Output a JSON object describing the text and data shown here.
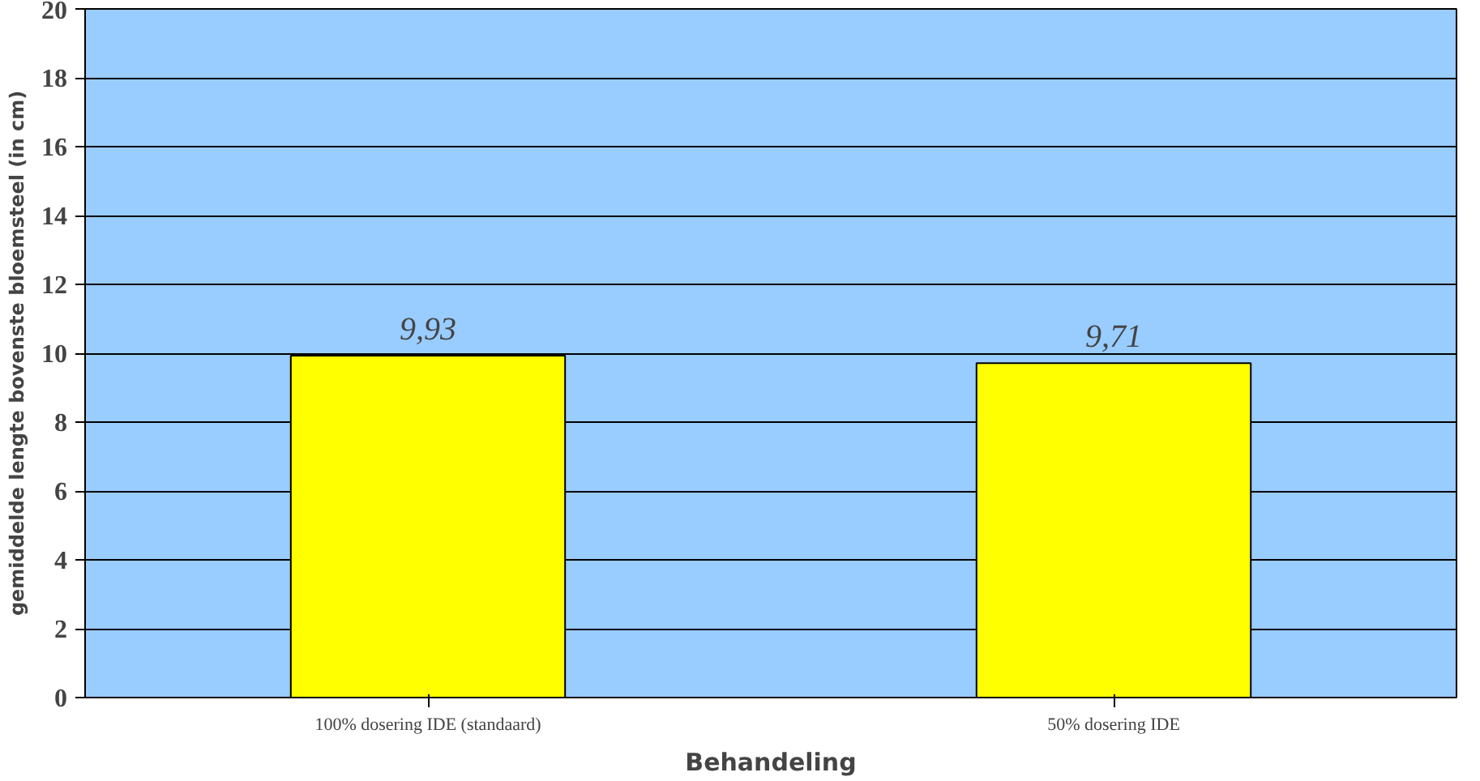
{
  "chart_data": {
    "type": "bar",
    "xlabel": "Behandeling",
    "ylabel": "gemiddelde lengte bovenste bloemsteel (in cm)",
    "categories": [
      "100% dosering IDE (standaard)",
      "50% dosering IDE"
    ],
    "values": [
      9.93,
      9.71
    ],
    "value_labels": [
      "9,93",
      "9,71"
    ],
    "color": "#ffff00",
    "ylim": [
      0,
      20
    ],
    "yticks": [
      0,
      2,
      4,
      6,
      8,
      10,
      12,
      14,
      16,
      18,
      20
    ],
    "grid": "y"
  }
}
